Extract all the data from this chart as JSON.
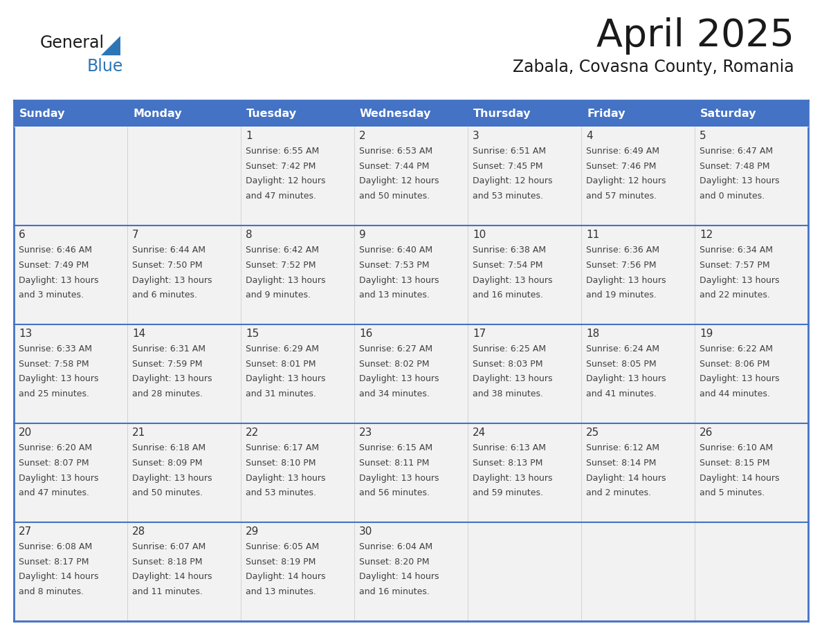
{
  "title": "April 2025",
  "subtitle": "Zabala, Covasna County, Romania",
  "days_of_week": [
    "Sunday",
    "Monday",
    "Tuesday",
    "Wednesday",
    "Thursday",
    "Friday",
    "Saturday"
  ],
  "header_bg": "#4472C4",
  "header_text_color": "#FFFFFF",
  "row_bg": "#F2F2F2",
  "cell_text_color": "#404040",
  "day_number_color": "#333333",
  "border_color": "#4472C4",
  "row_divider_color": "#4472C4",
  "general_text_color": "#1a1a1a",
  "blue_color": "#2E75B6",
  "calendar_data": [
    [
      null,
      null,
      {
        "day": 1,
        "sunrise": "6:55 AM",
        "sunset": "7:42 PM",
        "daylight_h": "12 hours",
        "daylight_m": "and 47 minutes."
      },
      {
        "day": 2,
        "sunrise": "6:53 AM",
        "sunset": "7:44 PM",
        "daylight_h": "12 hours",
        "daylight_m": "and 50 minutes."
      },
      {
        "day": 3,
        "sunrise": "6:51 AM",
        "sunset": "7:45 PM",
        "daylight_h": "12 hours",
        "daylight_m": "and 53 minutes."
      },
      {
        "day": 4,
        "sunrise": "6:49 AM",
        "sunset": "7:46 PM",
        "daylight_h": "12 hours",
        "daylight_m": "and 57 minutes."
      },
      {
        "day": 5,
        "sunrise": "6:47 AM",
        "sunset": "7:48 PM",
        "daylight_h": "13 hours",
        "daylight_m": "and 0 minutes."
      }
    ],
    [
      {
        "day": 6,
        "sunrise": "6:46 AM",
        "sunset": "7:49 PM",
        "daylight_h": "13 hours",
        "daylight_m": "and 3 minutes."
      },
      {
        "day": 7,
        "sunrise": "6:44 AM",
        "sunset": "7:50 PM",
        "daylight_h": "13 hours",
        "daylight_m": "and 6 minutes."
      },
      {
        "day": 8,
        "sunrise": "6:42 AM",
        "sunset": "7:52 PM",
        "daylight_h": "13 hours",
        "daylight_m": "and 9 minutes."
      },
      {
        "day": 9,
        "sunrise": "6:40 AM",
        "sunset": "7:53 PM",
        "daylight_h": "13 hours",
        "daylight_m": "and 13 minutes."
      },
      {
        "day": 10,
        "sunrise": "6:38 AM",
        "sunset": "7:54 PM",
        "daylight_h": "13 hours",
        "daylight_m": "and 16 minutes."
      },
      {
        "day": 11,
        "sunrise": "6:36 AM",
        "sunset": "7:56 PM",
        "daylight_h": "13 hours",
        "daylight_m": "and 19 minutes."
      },
      {
        "day": 12,
        "sunrise": "6:34 AM",
        "sunset": "7:57 PM",
        "daylight_h": "13 hours",
        "daylight_m": "and 22 minutes."
      }
    ],
    [
      {
        "day": 13,
        "sunrise": "6:33 AM",
        "sunset": "7:58 PM",
        "daylight_h": "13 hours",
        "daylight_m": "and 25 minutes."
      },
      {
        "day": 14,
        "sunrise": "6:31 AM",
        "sunset": "7:59 PM",
        "daylight_h": "13 hours",
        "daylight_m": "and 28 minutes."
      },
      {
        "day": 15,
        "sunrise": "6:29 AM",
        "sunset": "8:01 PM",
        "daylight_h": "13 hours",
        "daylight_m": "and 31 minutes."
      },
      {
        "day": 16,
        "sunrise": "6:27 AM",
        "sunset": "8:02 PM",
        "daylight_h": "13 hours",
        "daylight_m": "and 34 minutes."
      },
      {
        "day": 17,
        "sunrise": "6:25 AM",
        "sunset": "8:03 PM",
        "daylight_h": "13 hours",
        "daylight_m": "and 38 minutes."
      },
      {
        "day": 18,
        "sunrise": "6:24 AM",
        "sunset": "8:05 PM",
        "daylight_h": "13 hours",
        "daylight_m": "and 41 minutes."
      },
      {
        "day": 19,
        "sunrise": "6:22 AM",
        "sunset": "8:06 PM",
        "daylight_h": "13 hours",
        "daylight_m": "and 44 minutes."
      }
    ],
    [
      {
        "day": 20,
        "sunrise": "6:20 AM",
        "sunset": "8:07 PM",
        "daylight_h": "13 hours",
        "daylight_m": "and 47 minutes."
      },
      {
        "day": 21,
        "sunrise": "6:18 AM",
        "sunset": "8:09 PM",
        "daylight_h": "13 hours",
        "daylight_m": "and 50 minutes."
      },
      {
        "day": 22,
        "sunrise": "6:17 AM",
        "sunset": "8:10 PM",
        "daylight_h": "13 hours",
        "daylight_m": "and 53 minutes."
      },
      {
        "day": 23,
        "sunrise": "6:15 AM",
        "sunset": "8:11 PM",
        "daylight_h": "13 hours",
        "daylight_m": "and 56 minutes."
      },
      {
        "day": 24,
        "sunrise": "6:13 AM",
        "sunset": "8:13 PM",
        "daylight_h": "13 hours",
        "daylight_m": "and 59 minutes."
      },
      {
        "day": 25,
        "sunrise": "6:12 AM",
        "sunset": "8:14 PM",
        "daylight_h": "14 hours",
        "daylight_m": "and 2 minutes."
      },
      {
        "day": 26,
        "sunrise": "6:10 AM",
        "sunset": "8:15 PM",
        "daylight_h": "14 hours",
        "daylight_m": "and 5 minutes."
      }
    ],
    [
      {
        "day": 27,
        "sunrise": "6:08 AM",
        "sunset": "8:17 PM",
        "daylight_h": "14 hours",
        "daylight_m": "and 8 minutes."
      },
      {
        "day": 28,
        "sunrise": "6:07 AM",
        "sunset": "8:18 PM",
        "daylight_h": "14 hours",
        "daylight_m": "and 11 minutes."
      },
      {
        "day": 29,
        "sunrise": "6:05 AM",
        "sunset": "8:19 PM",
        "daylight_h": "14 hours",
        "daylight_m": "and 13 minutes."
      },
      {
        "day": 30,
        "sunrise": "6:04 AM",
        "sunset": "8:20 PM",
        "daylight_h": "14 hours",
        "daylight_m": "and 16 minutes."
      },
      null,
      null,
      null
    ]
  ]
}
